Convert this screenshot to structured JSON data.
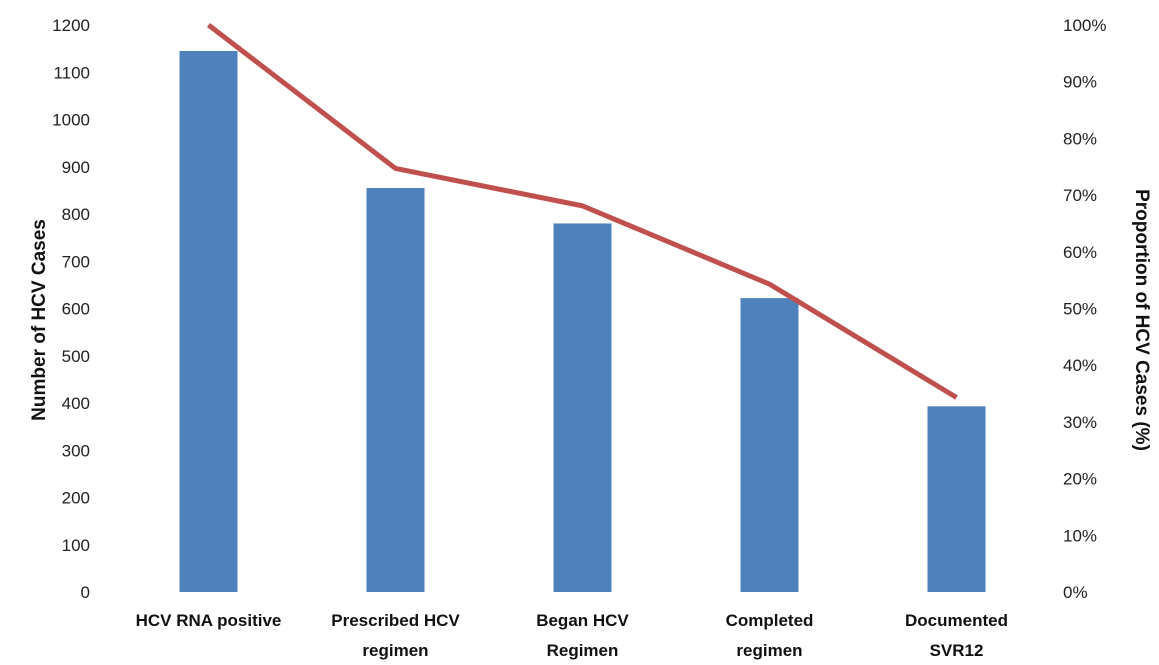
{
  "chart_data": {
    "type": "bar",
    "title": "",
    "categories": [
      [
        "HCV RNA positive"
      ],
      [
        "Prescribed HCV",
        "regimen"
      ],
      [
        "Began HCV",
        "Regimen"
      ],
      [
        "Completed",
        "regimen"
      ],
      [
        "Documented",
        "SVR12"
      ]
    ],
    "series": [
      {
        "type": "bar",
        "axis": "left",
        "color": "#4F81BD",
        "values": [
          1145,
          855,
          780,
          622,
          393
        ]
      },
      {
        "type": "line",
        "axis": "right",
        "color": "#C0504D",
        "values": [
          100,
          74.7,
          68.1,
          54.3,
          34.3
        ]
      }
    ],
    "ylabel": "Number of HCV Cases",
    "ylim": [
      0,
      1200
    ],
    "yticks": [
      "0",
      "100",
      "200",
      "300",
      "400",
      "500",
      "600",
      "700",
      "800",
      "900",
      "1000",
      "1100",
      "1200"
    ],
    "y2label": "Proportion of HCV Cases (%)",
    "y2lim": [
      0,
      100
    ],
    "y2ticks": [
      "0%",
      "10%",
      "20%",
      "30%",
      "40%",
      "50%",
      "60%",
      "70%",
      "80%",
      "90%",
      "100%"
    ],
    "grid": false,
    "legend": "none"
  }
}
